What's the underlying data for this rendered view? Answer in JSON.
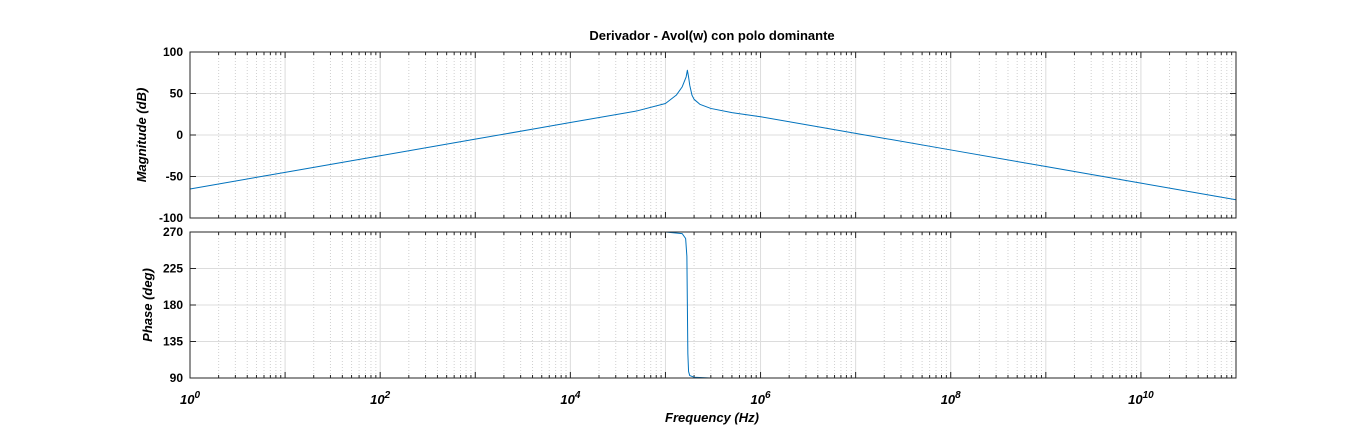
{
  "chart_data": {
    "type": "line",
    "title": "Derivador - Avol(w) con polo dominante",
    "xlabel": "Frequency  (Hz)",
    "xscale": "log",
    "xlim": [
      1,
      100000000000
    ],
    "grid": true,
    "x_ticks": [
      {
        "value": 1,
        "base": "10",
        "exp": "0"
      },
      {
        "value": 100,
        "base": "10",
        "exp": "2"
      },
      {
        "value": 10000,
        "base": "10",
        "exp": "4"
      },
      {
        "value": 1000000,
        "base": "10",
        "exp": "6"
      },
      {
        "value": 100000000,
        "base": "10",
        "exp": "8"
      },
      {
        "value": 10000000000,
        "base": "10",
        "exp": "10"
      }
    ],
    "panels": [
      {
        "name": "magnitude",
        "ylabel": "Magnitude (dB)",
        "ylim": [
          -100,
          100
        ],
        "yticks": [
          -100,
          -50,
          0,
          50,
          100
        ],
        "ytick_labels": [
          "-100",
          "-50",
          "0",
          "50",
          "100"
        ],
        "series": [
          {
            "color": "#0072bd",
            "x": [
              1,
              10,
              100,
              1000,
              10000,
              50000,
              100000,
              130000,
              150000,
              165000,
              170000,
              175000,
              180000,
              190000,
              200000,
              230000,
              300000,
              500000,
              1000000,
              10000000,
              100000000,
              1000000000,
              10000000000,
              100000000000
            ],
            "y": [
              -65,
              -45,
              -25,
              -5,
              15,
              29,
              38,
              48,
              58,
              70,
              78,
              70,
              60,
              48,
              43,
              37,
              32,
              27,
              22,
              2,
              -18,
              -38,
              -58,
              -78
            ]
          }
        ]
      },
      {
        "name": "phase",
        "ylabel": "Phase (deg)",
        "ylim": [
          90,
          270
        ],
        "yticks": [
          90,
          135,
          180,
          225,
          270
        ],
        "ytick_labels": [
          "90",
          "135",
          "180",
          "225",
          "270"
        ],
        "series": [
          {
            "color": "#0072bd",
            "x": [
              1,
              100000,
              150000,
              163000,
              168000,
              170000,
              172000,
              175000,
              180000,
              200000,
              300000,
              100000000000
            ],
            "y": [
              270,
              270,
              268,
              262,
              240,
              180,
              120,
              98,
              93,
              91,
              90,
              90
            ]
          }
        ]
      }
    ]
  }
}
